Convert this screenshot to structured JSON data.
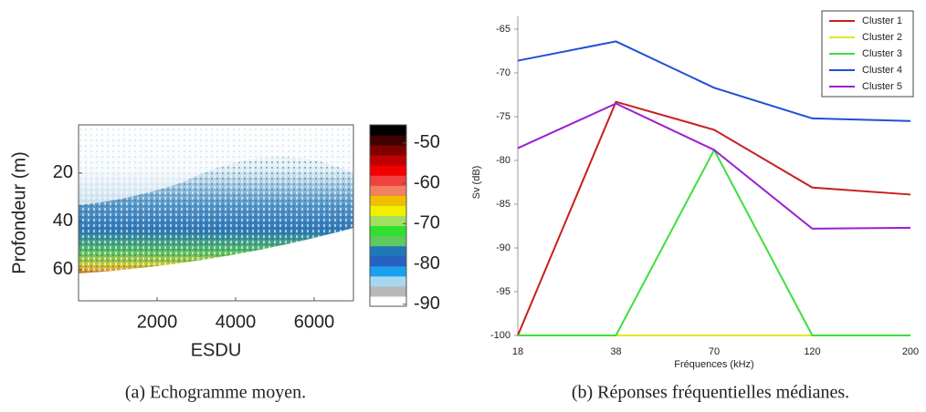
{
  "chart_data": [
    {
      "type": "heatmap",
      "caption": "(a) Echogramme moyen.",
      "xlabel": "ESDU",
      "ylabel": "Profondeur (m)",
      "xlim": [
        0,
        7000
      ],
      "xticks": [
        2000,
        4000,
        6000
      ],
      "ylim": [
        0,
        73
      ],
      "yticks": [
        20,
        40,
        60
      ],
      "colorbar": {
        "lim": [
          -90.5,
          -45.5
        ],
        "ticks": [
          -50,
          -60,
          -70,
          -80,
          -90
        ],
        "colors": [
          "#ffffff",
          "#b8b8b8",
          "#a8d8f0",
          "#1aa0f0",
          "#2860c0",
          "#1e78b8",
          "#60c860",
          "#30e030",
          "#a0e060",
          "#f0f000",
          "#f0c000",
          "#f08060",
          "#f04040",
          "#f00000",
          "#c00000",
          "#800000",
          "#400000",
          "#000000"
        ]
      }
    },
    {
      "type": "line",
      "caption": "(b) Réponses fréquentielles médianes.",
      "xlabel": "Fréquences (kHz)",
      "ylabel": "Sv (dB)",
      "categories": [
        "18",
        "38",
        "70",
        "120",
        "200"
      ],
      "ylim": [
        -100,
        -65
      ],
      "yticks": [
        -100,
        -95,
        -90,
        -85,
        -80,
        -75,
        -70,
        -65
      ],
      "legend": "top-right",
      "series": [
        {
          "name": "Cluster 1",
          "color": "#c81e1e",
          "values": [
            -100,
            -73.3,
            -76.5,
            -83.1,
            -83.9
          ]
        },
        {
          "name": "Cluster 2",
          "color": "#e8e820",
          "values": [
            -100,
            -100,
            -100,
            -100,
            -100
          ]
        },
        {
          "name": "Cluster 3",
          "color": "#40dd40",
          "values": [
            -100,
            -100,
            -78.8,
            -100,
            -100
          ]
        },
        {
          "name": "Cluster 4",
          "color": "#1f4fd8",
          "values": [
            -68.6,
            -66.4,
            -71.7,
            -75.2,
            -75.5
          ]
        },
        {
          "name": "Cluster 5",
          "color": "#9b1fd0",
          "values": [
            -78.6,
            -73.5,
            -78.8,
            -87.8,
            -87.7
          ]
        }
      ]
    }
  ]
}
